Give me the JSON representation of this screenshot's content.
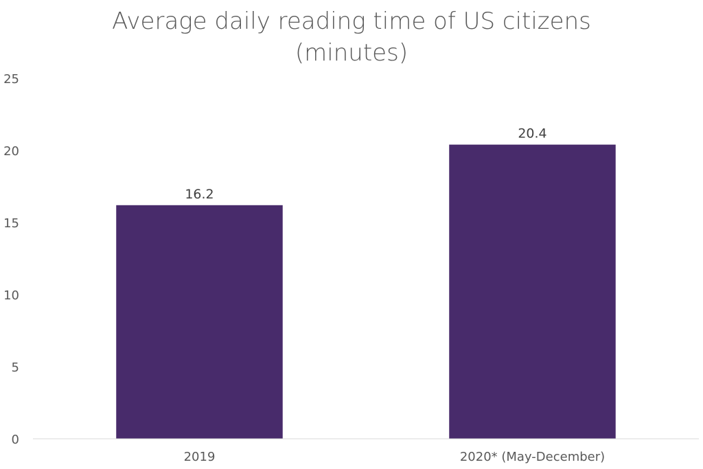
{
  "chart_data": {
    "type": "bar",
    "title_lines": [
      "Average daily reading time of US citizens",
      "(minutes)"
    ],
    "xlabel": "",
    "ylabel": "",
    "categories": [
      "2019",
      "2020* (May-December)"
    ],
    "values": [
      16.2,
      20.4
    ],
    "data_labels": [
      "16.2",
      "20.4"
    ],
    "ylim": [
      0,
      25
    ],
    "yticks": [
      0,
      5,
      10,
      15,
      20,
      25
    ],
    "grid": false,
    "legend": "none",
    "colors": {
      "bar": "#482b6b",
      "axis_line": "#d9d9d9",
      "text": "#595959"
    }
  }
}
